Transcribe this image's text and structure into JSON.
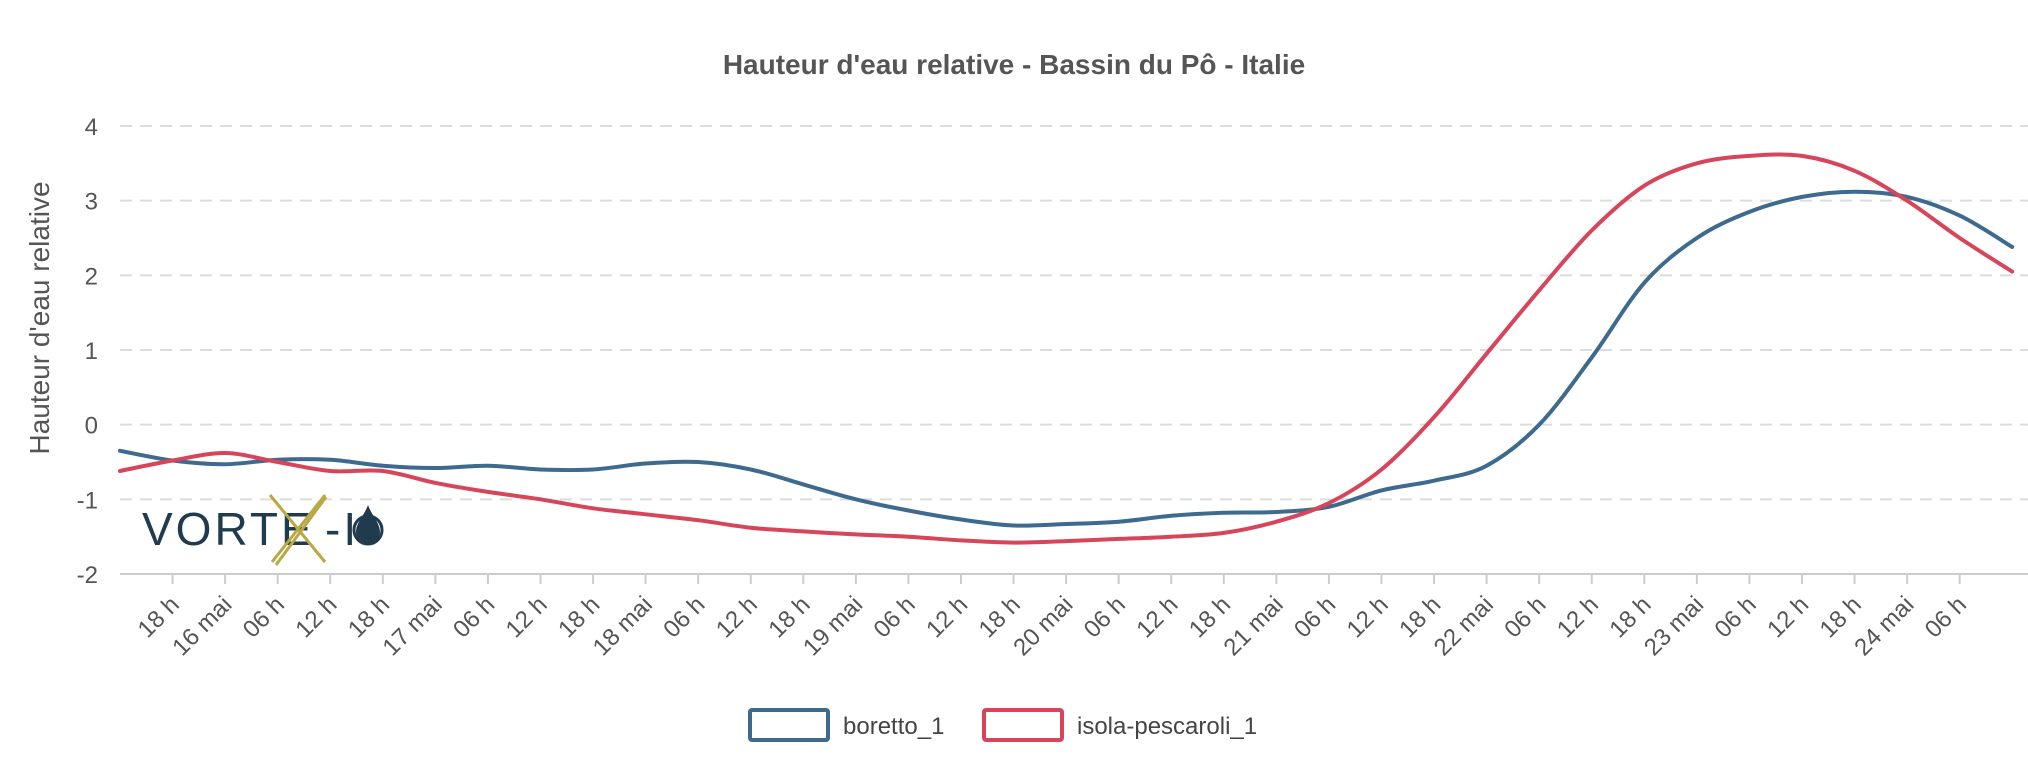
{
  "chart_data": {
    "type": "line",
    "title": "Hauteur d'eau relative - Bassin du Pô - Italie",
    "ylabel": "Hauteur d'eau relative",
    "xlabel": "",
    "ylim": [
      -2,
      4
    ],
    "yticks": [
      -2,
      -1,
      0,
      1,
      2,
      3,
      4
    ],
    "grid": true,
    "legend_position": "bottom",
    "x_range": [
      "15 mai 12 h",
      "24 mai 12 h"
    ],
    "x_ticks": [
      "18 h",
      "16 mai",
      "06 h",
      "12 h",
      "18 h",
      "17 mai",
      "06 h",
      "12 h",
      "18 h",
      "18 mai",
      "06 h",
      "12 h",
      "18 h",
      "19 mai",
      "06 h",
      "12 h",
      "18 h",
      "20 mai",
      "06 h",
      "12 h",
      "18 h",
      "21 mai",
      "06 h",
      "12 h",
      "18 h",
      "22 mai",
      "06 h",
      "12 h",
      "18 h",
      "23 mai",
      "06 h",
      "12 h",
      "18 h",
      "24 mai",
      "06 h"
    ],
    "series": [
      {
        "name": "boretto_1",
        "color": "#3d6a8e",
        "x": [
          "15 mai 12 h",
          "15 mai 18 h",
          "16 mai 00 h",
          "16 mai 06 h",
          "16 mai 12 h",
          "16 mai 18 h",
          "17 mai 00 h",
          "17 mai 06 h",
          "17 mai 12 h",
          "17 mai 18 h",
          "18 mai 00 h",
          "18 mai 06 h",
          "18 mai 12 h",
          "18 mai 18 h",
          "19 mai 00 h",
          "19 mai 06 h",
          "19 mai 12 h",
          "19 mai 18 h",
          "20 mai 00 h",
          "20 mai 06 h",
          "20 mai 12 h",
          "20 mai 18 h",
          "21 mai 00 h",
          "21 mai 06 h",
          "21 mai 12 h",
          "21 mai 18 h",
          "22 mai 00 h",
          "22 mai 06 h",
          "22 mai 12 h",
          "22 mai 18 h",
          "23 mai 00 h",
          "23 mai 06 h",
          "23 mai 12 h",
          "23 mai 18 h",
          "24 mai 00 h",
          "24 mai 06 h",
          "24 mai 12 h"
        ],
        "values": [
          -0.35,
          -0.48,
          -0.53,
          -0.47,
          -0.47,
          -0.55,
          -0.58,
          -0.55,
          -0.6,
          -0.6,
          -0.52,
          -0.5,
          -0.6,
          -0.8,
          -1.0,
          -1.15,
          -1.27,
          -1.35,
          -1.33,
          -1.3,
          -1.22,
          -1.18,
          -1.17,
          -1.1,
          -0.88,
          -0.75,
          -0.55,
          0.0,
          0.9,
          1.9,
          2.5,
          2.85,
          3.05,
          3.12,
          3.05,
          2.8,
          2.38
        ]
      },
      {
        "name": "isola-pescaroli_1",
        "color": "#d64559",
        "x": [
          "15 mai 12 h",
          "15 mai 18 h",
          "16 mai 00 h",
          "16 mai 06 h",
          "16 mai 12 h",
          "16 mai 18 h",
          "17 mai 00 h",
          "17 mai 06 h",
          "17 mai 12 h",
          "17 mai 18 h",
          "18 mai 00 h",
          "18 mai 06 h",
          "18 mai 12 h",
          "18 mai 18 h",
          "19 mai 00 h",
          "19 mai 06 h",
          "19 mai 12 h",
          "19 mai 18 h",
          "20 mai 00 h",
          "20 mai 06 h",
          "20 mai 12 h",
          "20 mai 18 h",
          "21 mai 00 h",
          "21 mai 06 h",
          "21 mai 12 h",
          "21 mai 18 h",
          "22 mai 00 h",
          "22 mai 06 h",
          "22 mai 12 h",
          "22 mai 18 h",
          "23 mai 00 h",
          "23 mai 06 h",
          "23 mai 12 h",
          "23 mai 18 h",
          "24 mai 00 h",
          "24 mai 06 h",
          "24 mai 12 h"
        ],
        "values": [
          -0.62,
          -0.48,
          -0.38,
          -0.5,
          -0.62,
          -0.62,
          -0.78,
          -0.9,
          -1.0,
          -1.12,
          -1.2,
          -1.28,
          -1.38,
          -1.43,
          -1.47,
          -1.5,
          -1.55,
          -1.58,
          -1.56,
          -1.53,
          -1.5,
          -1.45,
          -1.3,
          -1.05,
          -0.6,
          0.1,
          0.95,
          1.8,
          2.6,
          3.2,
          3.5,
          3.6,
          3.6,
          3.4,
          3.0,
          2.5,
          2.05
        ]
      }
    ]
  },
  "logo": {
    "text": "VORTEX-IO"
  }
}
